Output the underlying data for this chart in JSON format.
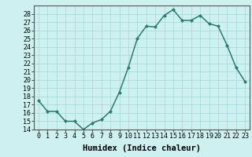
{
  "x": [
    0,
    1,
    2,
    3,
    4,
    5,
    6,
    7,
    8,
    9,
    10,
    11,
    12,
    13,
    14,
    15,
    16,
    17,
    18,
    19,
    20,
    21,
    22,
    23
  ],
  "y": [
    17.5,
    16.2,
    16.2,
    15.0,
    15.0,
    14.0,
    14.8,
    15.2,
    16.2,
    18.5,
    21.5,
    25.0,
    26.5,
    26.4,
    27.8,
    28.5,
    27.2,
    27.2,
    27.8,
    26.8,
    26.5,
    24.2,
    21.5,
    19.8
  ],
  "line_color": "#2a7d6e",
  "marker": "D",
  "marker_size": 2.0,
  "xlabel": "Humidex (Indice chaleur)",
  "ylim": [
    14,
    29
  ],
  "xlim": [
    -0.5,
    23.5
  ],
  "yticks": [
    14,
    15,
    16,
    17,
    18,
    19,
    20,
    21,
    22,
    23,
    24,
    25,
    26,
    27,
    28
  ],
  "xticks": [
    0,
    1,
    2,
    3,
    4,
    5,
    6,
    7,
    8,
    9,
    10,
    11,
    12,
    13,
    14,
    15,
    16,
    17,
    18,
    19,
    20,
    21,
    22,
    23
  ],
  "xtick_labels": [
    "0",
    "1",
    "2",
    "3",
    "4",
    "5",
    "6",
    "7",
    "8",
    "9",
    "10",
    "11",
    "12",
    "13",
    "14",
    "15",
    "16",
    "17",
    "18",
    "19",
    "20",
    "21",
    "22",
    "23"
  ],
  "bg_color": "#cff0f0",
  "grid_color": "#a0d8d8",
  "xlabel_fontsize": 7.5,
  "tick_fontsize": 6.0,
  "linewidth": 1.1
}
